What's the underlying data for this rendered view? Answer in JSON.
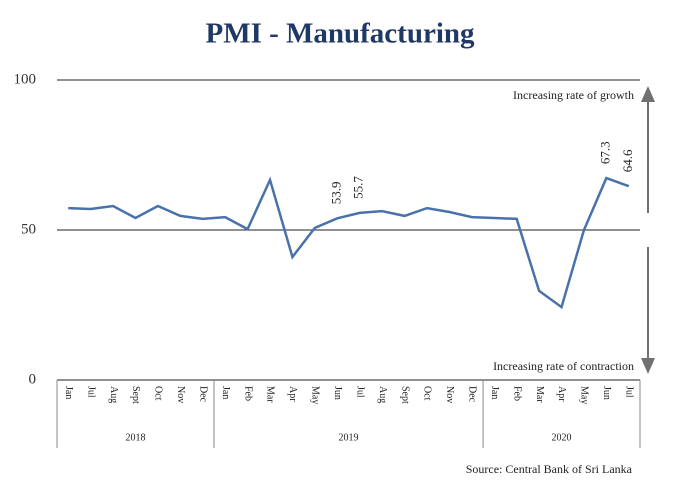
{
  "chart_data": {
    "type": "line",
    "title": "PMI - Manufacturing",
    "categories": [
      "Jan",
      "Jul",
      "Aug",
      "Sept",
      "Oct",
      "Nov",
      "Dec",
      "Jan",
      "Feb",
      "Mar",
      "Apr",
      "May",
      "Jun",
      "Jul",
      "Aug",
      "Sept",
      "Oct",
      "Nov",
      "Dec",
      "Jan",
      "Feb",
      "Mar",
      "Apr",
      "May",
      "Jun",
      "Jul"
    ],
    "groups": [
      {
        "label": "2018",
        "size": 7
      },
      {
        "label": "2019",
        "size": 12
      },
      {
        "label": "2020",
        "size": 7
      }
    ],
    "values": [
      57.3,
      57,
      58,
      54,
      58,
      54.7,
      53.7,
      54.3,
      50.3,
      66.7,
      41,
      50.7,
      53.9,
      55.7,
      56.3,
      54.7,
      57.3,
      56,
      54.3,
      54,
      53.7,
      29.7,
      24.3,
      50,
      67.3,
      64.6
    ],
    "value_labels": [
      null,
      null,
      null,
      null,
      null,
      null,
      null,
      null,
      null,
      null,
      null,
      null,
      "53.9",
      "55.7",
      null,
      null,
      null,
      null,
      null,
      null,
      null,
      null,
      null,
      null,
      "67.3",
      "64.6"
    ],
    "color": "#4a72aa",
    "ylim": [
      0,
      100
    ],
    "yticks": [
      0,
      50,
      100
    ],
    "grid": true,
    "annotations": [
      "Increasing rate of growth",
      "Increasing rate of contraction"
    ],
    "source": "Source: Central Bank of Sri Lanka"
  }
}
